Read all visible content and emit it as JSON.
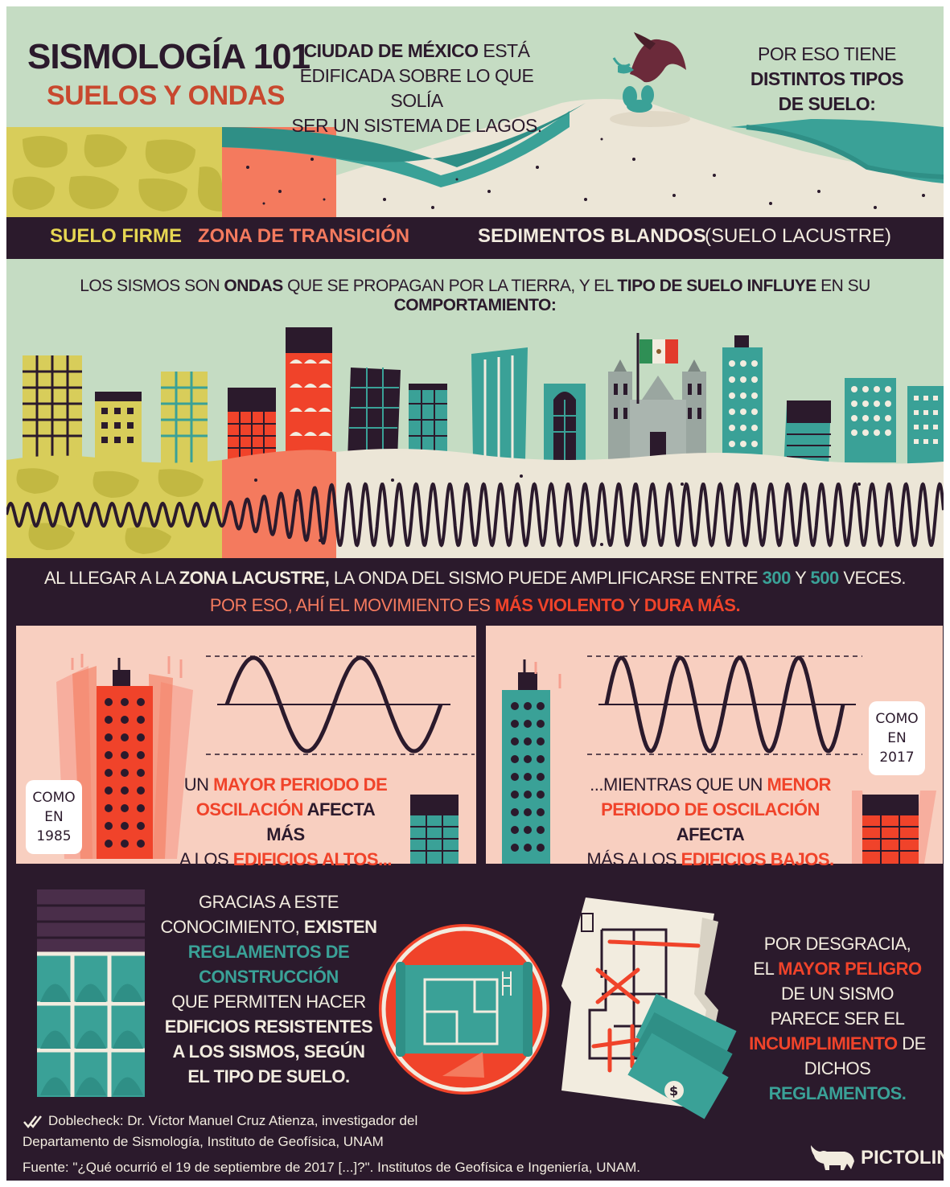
{
  "header": {
    "title": "SISMOLOGÍA 101",
    "subtitle": "SUELOS Y ONDAS",
    "intro_bold": "CIUDAD DE MÉXICO",
    "intro_rest_1": " ESTÁ",
    "intro_line_2": "EDIFICADA SOBRE LO QUE SOLÍA",
    "intro_line_3": "SER UN SISTEMA DE LAGOS.",
    "intro2_line_1": "POR ESO TIENE",
    "intro2_line_2": "DISTINTOS TIPOS",
    "intro2_line_3": "DE SUELO:"
  },
  "soils": {
    "firm": "SUELO FIRME",
    "transition": "ZONA DE TRANSICIÓN",
    "soft": "SEDIMENTOS BLANDOS",
    "soft_note": "(SUELO LACUSTRE)"
  },
  "waves": {
    "t1": "LOS SISMOS SON ",
    "t2": "ONDAS",
    "t3": " QUE SE PROPAGAN POR LA TIERRA, Y EL ",
    "t4": "TIPO DE SUELO INFLUYE",
    "t5": " EN SU ",
    "t6": "COMPORTAMIENTO:"
  },
  "amplification": {
    "a1": "AL LLEGAR A LA ",
    "a2": "ZONA LACUSTRE,",
    "a3": " LA ONDA DEL SISMO PUEDE AMPLIFICARSE ENTRE ",
    "a4": "300",
    "a5": " Y ",
    "a6": "500",
    "a7": " VECES.",
    "b1": "POR ESO, AHÍ EL MOVIMIENTO ES ",
    "b2": "MÁS VIOLENTO",
    "b3": " Y ",
    "b4": "DURA MÁS."
  },
  "panel_left": {
    "l1a": "UN ",
    "l1b": "MAYOR PERIODO DE",
    "l2a": "OSCILACIÓN",
    "l2b": " AFECTA MÁS",
    "l3a": "A LOS ",
    "l3b": "EDIFICIOS ALTOS...",
    "bubble_1": "COMO",
    "bubble_2": "EN",
    "bubble_3": "1985"
  },
  "panel_right": {
    "l1a": "...MIENTRAS QUE UN ",
    "l1b": "MENOR",
    "l2a": "PERIODO DE OSCILACIÓN",
    "l2b": " AFECTA",
    "l3a": "MÁS A LOS ",
    "l3b": "EDIFICIOS BAJOS.",
    "bubble_1": "COMO",
    "bubble_2": "EN",
    "bubble_3": "2017"
  },
  "regulations": {
    "r1": "GRACIAS A ESTE",
    "r2a": "CONOCIMIENTO, ",
    "r2b": "EXISTEN",
    "r3": "REGLAMENTOS DE",
    "r4": "CONSTRUCCIÓN",
    "r5": "QUE PERMITEN HACER",
    "r6": "EDIFICIOS RESISTENTES",
    "r7": "A LOS SISMOS, SEGÚN",
    "r8": "EL TIPO DE SUELO."
  },
  "danger": {
    "d1": "POR DESGRACIA,",
    "d2a": "EL ",
    "d2b": "MAYOR PELIGRO",
    "d3": "DE UN SISMO",
    "d4": "PARECE SER EL",
    "d5a": "INCUMPLIMIENTO",
    "d5b": " DE",
    "d6a": "DICHOS ",
    "d6b": "REGLAMENTOS."
  },
  "credits": {
    "line1": "Doblecheck: Dr. Víctor Manuel Cruz Atienza, investigador del",
    "line2": "Departamento de Sismología, Instituto de Geofísica, UNAM",
    "line3": "Fuente: \"¿Qué ocurrió el 19 de septiembre de 2017 [...]?\". Institutos de Geofísica e Ingeniería, UNAM."
  },
  "brand": "PICTOLINE",
  "icons": [
    "eagle-icon",
    "mexico-flag-icon",
    "checkmark-icon",
    "bull-logo-icon",
    "blueprint-icon",
    "money-icon"
  ],
  "colors": {
    "background": "#2b1a2c",
    "sky": "#c5dcc3",
    "yellow": "#e6d652",
    "red": "#f0432a",
    "teal": "#3aa197",
    "salmon": "#f47a5e",
    "panel": "#f8cfc0"
  }
}
